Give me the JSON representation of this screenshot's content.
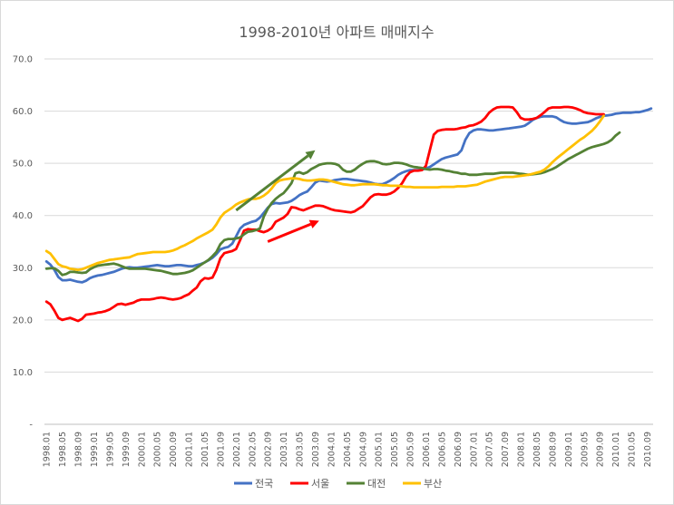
{
  "chart_data": {
    "type": "line",
    "title": "1998-2010년 아파트 매매지수",
    "xlabel": "",
    "ylabel": "",
    "ylim": [
      0,
      70
    ],
    "y_ticks": [
      "-",
      "10.0",
      "20.0",
      "30.0",
      "40.0",
      "50.0",
      "60.0",
      "70.0"
    ],
    "x_tick_labels": [
      "1998.01",
      "1998.05",
      "1998.09",
      "1999.01",
      "1999.05",
      "1999.09",
      "2000.01",
      "2000.05",
      "2000.09",
      "2001.01",
      "2001.05",
      "2001.09",
      "2002.01",
      "2002.05",
      "2002.09",
      "2003.01",
      "2003.05",
      "2003.09",
      "2004.01",
      "2004.05",
      "2004.09",
      "2005.01",
      "2005.05",
      "2005.09",
      "2006.01",
      "2006.05",
      "2006.09",
      "2007.01",
      "2007.05",
      "2007.09",
      "2008.01",
      "2008.05",
      "2008.09",
      "2009.01",
      "2009.05",
      "2009.09",
      "2010.01",
      "2010.05",
      "2010.09"
    ],
    "grid": true,
    "legend_position": "bottom",
    "series": [
      {
        "name": "전국",
        "color": "#4472c4",
        "values": [
          31.2,
          30.6,
          29.6,
          28.2,
          27.6,
          27.6,
          27.7,
          27.5,
          27.3,
          27.2,
          27.5,
          28.0,
          28.3,
          28.5,
          28.6,
          28.8,
          29.0,
          29.2,
          29.5,
          29.8,
          30.0,
          30.1,
          30.0,
          30.0,
          30.1,
          30.2,
          30.3,
          30.4,
          30.5,
          30.4,
          30.3,
          30.3,
          30.4,
          30.5,
          30.5,
          30.4,
          30.3,
          30.3,
          30.5,
          30.7,
          31.0,
          31.4,
          31.9,
          32.6,
          33.5,
          33.8,
          34.0,
          34.6,
          36.0,
          37.5,
          38.2,
          38.5,
          38.8,
          39.0,
          39.6,
          40.5,
          41.5,
          42.2,
          42.4,
          42.3,
          42.4,
          42.5,
          42.8,
          43.3,
          43.9,
          44.3,
          44.6,
          45.4,
          46.3,
          46.7,
          46.6,
          46.5,
          46.6,
          46.8,
          46.9,
          47.0,
          47.0,
          46.9,
          46.8,
          46.7,
          46.6,
          46.5,
          46.3,
          46.1,
          46.0,
          46.0,
          46.3,
          46.7,
          47.2,
          47.8,
          48.2,
          48.5,
          48.7,
          48.7,
          48.7,
          48.8,
          49.0,
          49.3,
          49.8,
          50.3,
          50.8,
          51.1,
          51.3,
          51.5,
          51.7,
          52.5,
          54.5,
          55.8,
          56.3,
          56.5,
          56.5,
          56.4,
          56.3,
          56.3,
          56.4,
          56.5,
          56.6,
          56.7,
          56.8,
          56.9,
          57.0,
          57.2,
          57.7,
          58.3,
          58.7,
          58.9,
          59.0,
          59.0,
          59.0,
          58.8,
          58.3,
          57.9,
          57.7,
          57.6,
          57.6,
          57.7,
          57.8,
          57.9,
          58.2,
          58.6,
          58.9,
          59.1,
          59.2,
          59.3,
          59.5,
          59.6,
          59.7,
          59.7,
          59.7,
          59.8,
          59.8,
          60.0,
          60.2,
          60.5
        ]
      },
      {
        "name": "서울",
        "color": "#ff0000",
        "values": [
          23.5,
          23.0,
          21.8,
          20.4,
          20.0,
          20.2,
          20.4,
          20.1,
          19.8,
          20.2,
          21.0,
          21.1,
          21.2,
          21.4,
          21.5,
          21.7,
          22.0,
          22.5,
          23.0,
          23.1,
          22.9,
          23.1,
          23.3,
          23.7,
          23.9,
          23.9,
          23.9,
          24.0,
          24.2,
          24.3,
          24.2,
          24.0,
          23.9,
          24.0,
          24.2,
          24.6,
          24.9,
          25.6,
          26.2,
          27.4,
          28.0,
          27.9,
          28.1,
          29.6,
          31.8,
          32.8,
          33.0,
          33.2,
          33.6,
          35.3,
          37.1,
          37.4,
          37.3,
          37.3,
          37.0,
          36.8,
          37.1,
          37.6,
          38.8,
          39.2,
          39.6,
          40.3,
          41.6,
          41.5,
          41.2,
          41.0,
          41.3,
          41.6,
          41.9,
          41.9,
          41.8,
          41.5,
          41.2,
          41.0,
          40.9,
          40.8,
          40.7,
          40.6,
          40.8,
          41.3,
          41.8,
          42.6,
          43.5,
          44.0,
          44.1,
          44.0,
          44.0,
          44.2,
          44.6,
          45.3,
          46.2,
          47.5,
          48.3,
          48.6,
          48.6,
          48.7,
          49.5,
          52.5,
          55.5,
          56.2,
          56.4,
          56.5,
          56.5,
          56.5,
          56.6,
          56.8,
          56.9,
          57.2,
          57.3,
          57.6,
          58.0,
          58.7,
          59.7,
          60.3,
          60.7,
          60.8,
          60.8,
          60.8,
          60.7,
          59.8,
          58.7,
          58.4,
          58.4,
          58.5,
          58.7,
          59.2,
          59.8,
          60.5,
          60.7,
          60.7,
          60.7,
          60.8,
          60.8,
          60.7,
          60.5,
          60.2,
          59.8,
          59.6,
          59.5,
          59.4,
          59.4,
          59.4
        ]
      },
      {
        "name": "대전",
        "color": "#548235",
        "values": [
          29.8,
          29.9,
          29.9,
          29.4,
          28.6,
          28.8,
          29.2,
          29.2,
          29.1,
          29.0,
          29.1,
          29.7,
          30.1,
          30.4,
          30.5,
          30.6,
          30.7,
          30.8,
          30.6,
          30.3,
          30.0,
          29.8,
          29.8,
          29.8,
          29.8,
          29.8,
          29.7,
          29.6,
          29.5,
          29.4,
          29.2,
          29.0,
          28.8,
          28.8,
          28.9,
          29.0,
          29.2,
          29.5,
          30.0,
          30.5,
          31.0,
          31.5,
          32.2,
          33.0,
          34.5,
          35.3,
          35.5,
          35.5,
          35.6,
          35.8,
          36.4,
          36.9,
          37.0,
          37.2,
          37.5,
          39.8,
          41.3,
          42.4,
          43.2,
          43.8,
          44.3,
          45.2,
          46.2,
          48.1,
          48.3,
          48.0,
          48.3,
          48.9,
          49.3,
          49.7,
          49.9,
          50.0,
          50.0,
          49.9,
          49.6,
          48.8,
          48.4,
          48.4,
          48.8,
          49.4,
          49.9,
          50.3,
          50.4,
          50.4,
          50.2,
          49.9,
          49.8,
          49.9,
          50.1,
          50.1,
          50.0,
          49.8,
          49.5,
          49.3,
          49.2,
          49.1,
          48.9,
          48.8,
          48.9,
          48.9,
          48.8,
          48.6,
          48.5,
          48.3,
          48.2,
          48.0,
          48.0,
          47.8,
          47.8,
          47.8,
          47.9,
          48.0,
          48.0,
          48.0,
          48.1,
          48.2,
          48.2,
          48.2,
          48.2,
          48.1,
          48.0,
          47.9,
          47.8,
          47.9,
          48.0,
          48.1,
          48.3,
          48.6,
          48.9,
          49.3,
          49.8,
          50.3,
          50.8,
          51.2,
          51.6,
          52.0,
          52.4,
          52.8,
          53.1,
          53.3,
          53.5,
          53.7,
          54.0,
          54.5,
          55.3,
          55.9
        ]
      },
      {
        "name": "부산",
        "color": "#ffc000",
        "values": [
          33.2,
          32.7,
          31.7,
          30.7,
          30.3,
          30.1,
          29.8,
          29.7,
          29.6,
          29.7,
          30.0,
          30.3,
          30.6,
          30.9,
          31.1,
          31.3,
          31.5,
          31.6,
          31.7,
          31.8,
          31.9,
          32.0,
          32.3,
          32.6,
          32.7,
          32.8,
          32.9,
          33.0,
          33.0,
          33.0,
          33.0,
          33.1,
          33.3,
          33.6,
          34.0,
          34.3,
          34.7,
          35.1,
          35.6,
          36.0,
          36.4,
          36.8,
          37.3,
          38.3,
          39.6,
          40.5,
          41.0,
          41.5,
          42.1,
          42.5,
          42.8,
          43.1,
          43.2,
          43.2,
          43.4,
          43.8,
          44.4,
          45.2,
          46.2,
          46.7,
          46.9,
          47.0,
          47.1,
          47.1,
          47.0,
          46.8,
          46.7,
          46.7,
          46.8,
          46.9,
          46.9,
          46.8,
          46.6,
          46.4,
          46.2,
          46.0,
          45.9,
          45.8,
          45.8,
          45.9,
          46.0,
          46.0,
          46.0,
          46.0,
          45.9,
          45.8,
          45.8,
          45.7,
          45.7,
          45.7,
          45.6,
          45.5,
          45.5,
          45.4,
          45.4,
          45.4,
          45.4,
          45.4,
          45.4,
          45.4,
          45.5,
          45.5,
          45.5,
          45.5,
          45.6,
          45.6,
          45.6,
          45.7,
          45.8,
          45.9,
          46.2,
          46.5,
          46.7,
          46.9,
          47.1,
          47.3,
          47.4,
          47.4,
          47.4,
          47.5,
          47.6,
          47.7,
          47.8,
          48.0,
          48.2,
          48.4,
          48.8,
          49.4,
          50.2,
          50.9,
          51.5,
          52.1,
          52.7,
          53.3,
          53.9,
          54.5,
          55.0,
          55.6,
          56.2,
          57.0,
          58.0,
          59.1
        ]
      }
    ],
    "annotations": [
      {
        "type": "arrow",
        "color": "#548235",
        "from": [
          "2002.01",
          41.0
        ],
        "to": [
          "2003.09",
          52.5
        ]
      },
      {
        "type": "arrow",
        "color": "#ff0000",
        "from": [
          "2002.09",
          35.0
        ],
        "to": [
          "2003.10",
          39.0
        ]
      }
    ]
  }
}
